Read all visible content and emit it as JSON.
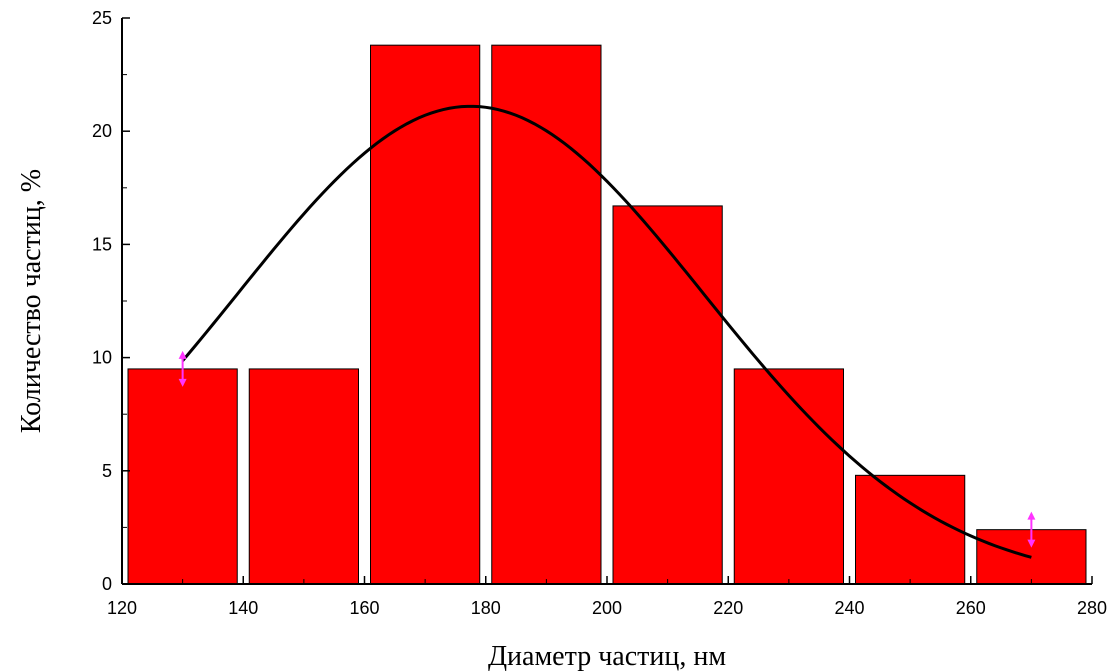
{
  "chart_data": {
    "type": "bar",
    "title": "",
    "xlabel": "Диаметр частиц, нм",
    "ylabel": "Количество частиц, %",
    "xlim": [
      120,
      280
    ],
    "ylim": [
      0,
      25
    ],
    "x_ticks": [
      120,
      140,
      160,
      180,
      200,
      220,
      240,
      260,
      280
    ],
    "y_ticks": [
      0,
      5,
      10,
      15,
      20,
      25
    ],
    "x_tick_labels": [
      "120",
      "140",
      "160",
      "180",
      "200",
      "220",
      "240",
      "260",
      "280"
    ],
    "y_tick_labels": [
      "0",
      "5",
      "10",
      "15",
      "20",
      "25"
    ],
    "bin_width": 20,
    "bins": [
      {
        "center": 130,
        "value": 9.5
      },
      {
        "center": 150,
        "value": 9.5
      },
      {
        "center": 170,
        "value": 23.8
      },
      {
        "center": 190,
        "value": 23.8
      },
      {
        "center": 210,
        "value": 16.7
      },
      {
        "center": 230,
        "value": 9.5
      },
      {
        "center": 250,
        "value": 4.8
      },
      {
        "center": 270,
        "value": 2.4
      }
    ],
    "bar_color": "#ff0000",
    "fit_curve": {
      "type": "gaussian",
      "x_range": [
        130,
        270
      ],
      "center": 177.5,
      "amplitude": 21.1,
      "sigma": 38.5,
      "color": "#000000"
    },
    "error_markers": [
      {
        "x": 130,
        "y": 9.5,
        "color": "#ff33ff"
      },
      {
        "x": 270,
        "y": 2.4,
        "color": "#ff33ff"
      }
    ],
    "grid": false,
    "legend": false
  }
}
